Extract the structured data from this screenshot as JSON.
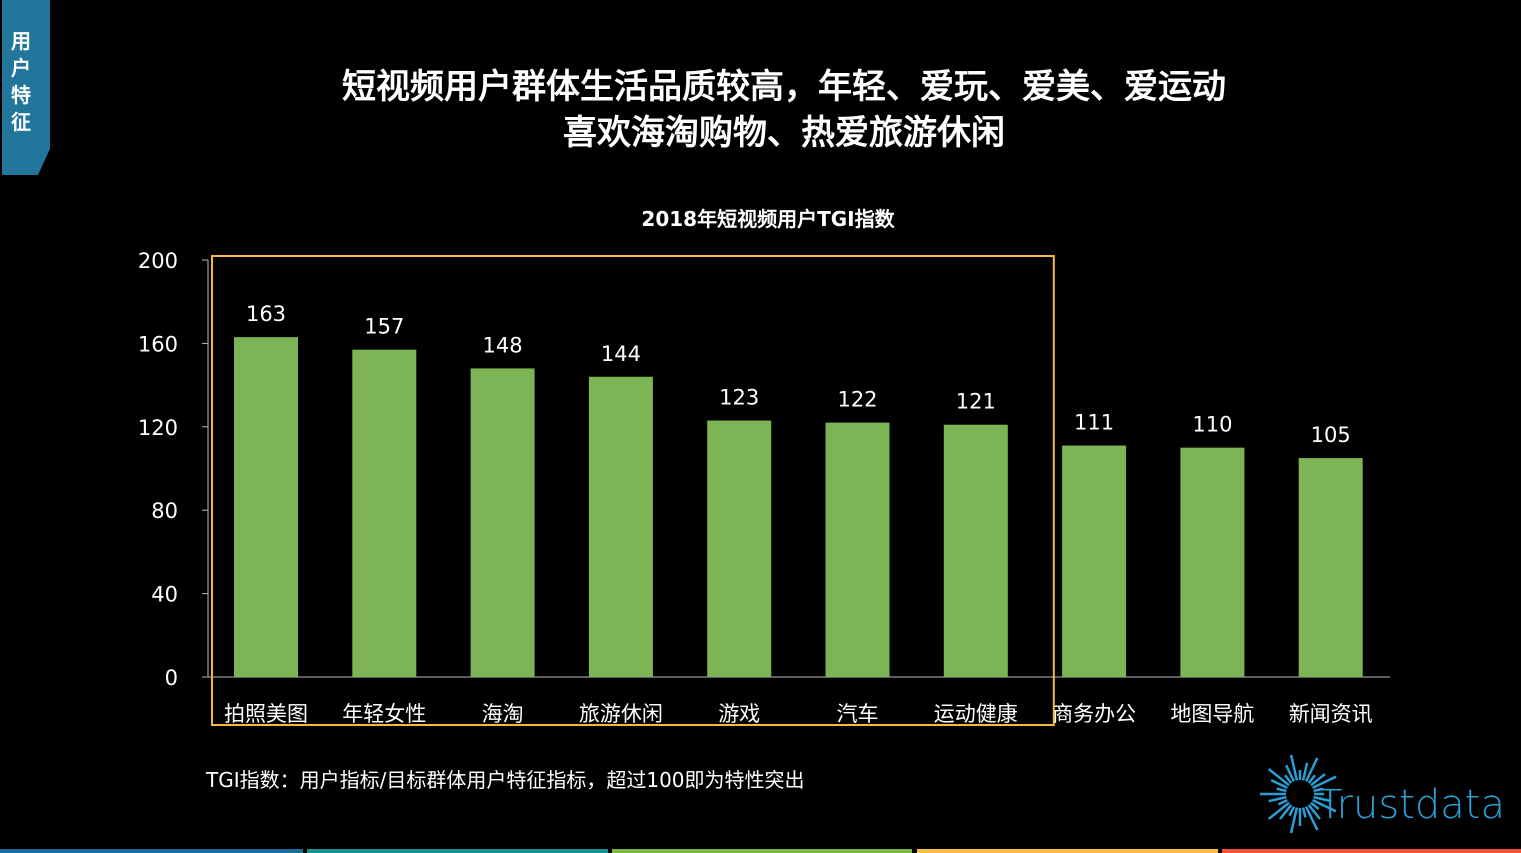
{
  "tab_label": "用户特征",
  "headline": [
    "短视频用户群体生活品质较高，年轻、爱玩、爱美、爱运动",
    "喜欢海淘购物、热爱旅游休闲"
  ],
  "note": "TGI指数：用户指标/目标群体用户特征指标，超过100即为特性突出",
  "logo_text": "Trustdata",
  "colors": {
    "bar": "#7db556",
    "highlight_box": "#f5b940",
    "tab": "#22769c",
    "logo": "#2a9fd6",
    "bottom_strip": [
      "#1f6a96",
      "#1a9090",
      "#7ab648",
      "#f7c042",
      "#f0503c"
    ]
  },
  "chart_data": {
    "type": "bar",
    "title": "2018年短视频用户TGI指数",
    "categories": [
      "拍照美图",
      "年轻女性",
      "海淘",
      "旅游休闲",
      "游戏",
      "汽车",
      "运动健康",
      "商务办公",
      "地图导航",
      "新闻资讯"
    ],
    "values": [
      163,
      157,
      148,
      144,
      123,
      122,
      121,
      111,
      110,
      105
    ],
    "ylim": [
      0,
      200
    ],
    "yticks": [
      0,
      40,
      80,
      120,
      160,
      200
    ],
    "grid": false,
    "highlighted_categories": [
      "拍照美图",
      "年轻女性",
      "海淘",
      "旅游休闲",
      "游戏",
      "汽车",
      "运动健康"
    ]
  }
}
